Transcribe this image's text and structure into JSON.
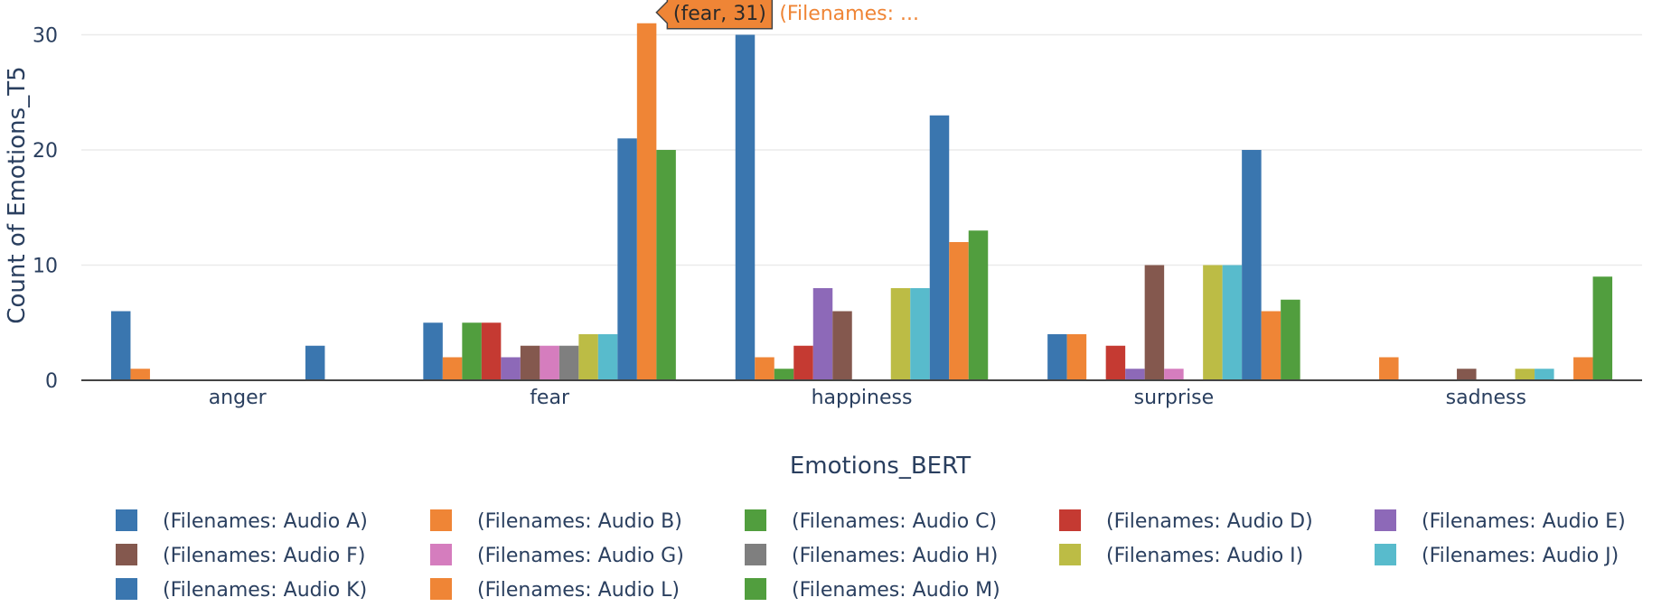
{
  "chart_data": {
    "type": "bar",
    "xlabel": "Emotions_BERT",
    "ylabel": "Count of Emotions_T5",
    "ylim": [
      0,
      32.5
    ],
    "yticks": [
      0,
      10,
      20,
      30
    ],
    "grid": true,
    "legend_placement": "bottom",
    "categories": [
      "anger",
      "fear",
      "happiness",
      "surprise",
      "sadness"
    ],
    "series": [
      {
        "name": "(Filenames: Audio A)",
        "color": "#3a76af",
        "values": [
          6,
          5,
          30,
          4,
          0
        ]
      },
      {
        "name": "(Filenames: Audio B)",
        "color": "#ef8536",
        "values": [
          1,
          2,
          2,
          4,
          2
        ]
      },
      {
        "name": "(Filenames: Audio C)",
        "color": "#519e3e",
        "values": [
          0,
          5,
          1,
          0,
          0
        ]
      },
      {
        "name": "(Filenames: Audio D)",
        "color": "#c53a32",
        "values": [
          0,
          5,
          3,
          3,
          0
        ]
      },
      {
        "name": "(Filenames: Audio E)",
        "color": "#8d69b8",
        "values": [
          0,
          2,
          8,
          1,
          0
        ]
      },
      {
        "name": "(Filenames: Audio F)",
        "color": "#84584e",
        "values": [
          0,
          3,
          6,
          10,
          1
        ]
      },
      {
        "name": "(Filenames: Audio G)",
        "color": "#d57dbe",
        "values": [
          0,
          3,
          0,
          1,
          0
        ]
      },
      {
        "name": "(Filenames: Audio H)",
        "color": "#7f7f7f",
        "values": [
          0,
          3,
          0,
          0,
          0
        ]
      },
      {
        "name": "(Filenames: Audio I)",
        "color": "#bcbc45",
        "values": [
          0,
          4,
          8,
          10,
          1
        ]
      },
      {
        "name": "(Filenames: Audio J)",
        "color": "#58bbcc",
        "values": [
          0,
          4,
          8,
          10,
          1
        ]
      },
      {
        "name": "(Filenames: Audio K)",
        "color": "#3a76af",
        "values": [
          3,
          21,
          23,
          20,
          0
        ]
      },
      {
        "name": "(Filenames: Audio L)",
        "color": "#ef8536",
        "values": [
          0,
          31,
          12,
          6,
          2
        ]
      },
      {
        "name": "(Filenames: Audio M)",
        "color": "#519e3e",
        "values": [
          0,
          20,
          13,
          7,
          9
        ]
      }
    ],
    "hover": {
      "category": "fear",
      "series_index": 11,
      "box_text": "(fear, 31)",
      "trailing_text": "(Filenames: ..."
    }
  }
}
